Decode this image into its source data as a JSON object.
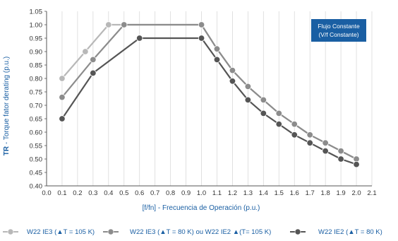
{
  "chart_data": {
    "type": "line",
    "ylabel_prefix": "TR",
    "ylabel_rest": " - Torque fator derating (p.u.)",
    "xlabel": "[f/fn] - Frecuencia de Operación (p.u.)",
    "xlim": [
      0.0,
      2.1
    ],
    "ylim": [
      0.4,
      1.05
    ],
    "xticks": [
      "0.0",
      "0.1",
      "0.2",
      "0.3",
      "0.4",
      "0.5",
      "0.6",
      "0.7",
      "0.8",
      "0.9",
      "1.0",
      "1.1",
      "1.2",
      "1.3",
      "1.4",
      "1.5",
      "1.6",
      "1.7",
      "1.8",
      "1.9",
      "2.0",
      "2.1"
    ],
    "yticks": [
      "0.40",
      "0.45",
      "0.50",
      "0.55",
      "0.60",
      "0.65",
      "0.70",
      "0.75",
      "0.80",
      "0.85",
      "0.90",
      "0.95",
      "1.00",
      "1.05"
    ],
    "grid": "vertical",
    "annotation": [
      "Flujo Constante",
      "(V/f Constante)"
    ],
    "legend_position": "bottom",
    "series": [
      {
        "name": "W22 IE3 (▲T = 105 K)",
        "color": "#b8b8b8",
        "x": [
          0.1,
          0.25,
          0.4,
          1.0,
          1.1,
          1.2,
          1.3,
          1.4,
          1.5,
          1.6,
          1.7,
          1.8,
          1.9,
          2.0
        ],
        "y": [
          0.8,
          0.9,
          1.0,
          1.0,
          0.91,
          0.83,
          0.77,
          0.72,
          0.67,
          0.63,
          0.59,
          0.56,
          0.53,
          0.5
        ]
      },
      {
        "name": "W22 IE3 (▲T = 80 K) ou W22 IE2 ▲(T= 105 K)",
        "color": "#8c8c8c",
        "x": [
          0.1,
          0.3,
          0.5,
          1.0,
          1.1,
          1.2,
          1.3,
          1.4,
          1.5,
          1.6,
          1.7,
          1.8,
          1.9,
          2.0
        ],
        "y": [
          0.73,
          0.87,
          1.0,
          1.0,
          0.91,
          0.83,
          0.77,
          0.72,
          0.67,
          0.63,
          0.59,
          0.56,
          0.53,
          0.5
        ]
      },
      {
        "name": "W22 IE2 (▲T = 80 K)",
        "color": "#555555",
        "x": [
          0.1,
          0.3,
          0.6,
          1.0,
          1.1,
          1.2,
          1.3,
          1.4,
          1.5,
          1.6,
          1.7,
          1.8,
          1.9,
          2.0
        ],
        "y": [
          0.65,
          0.82,
          0.95,
          0.95,
          0.87,
          0.79,
          0.72,
          0.67,
          0.63,
          0.59,
          0.56,
          0.53,
          0.5,
          0.48
        ]
      }
    ]
  },
  "colors": {
    "axis_title": "#1a5fa3",
    "annotation_box": "#1a5fa3",
    "grid": "#d9d9d9"
  }
}
